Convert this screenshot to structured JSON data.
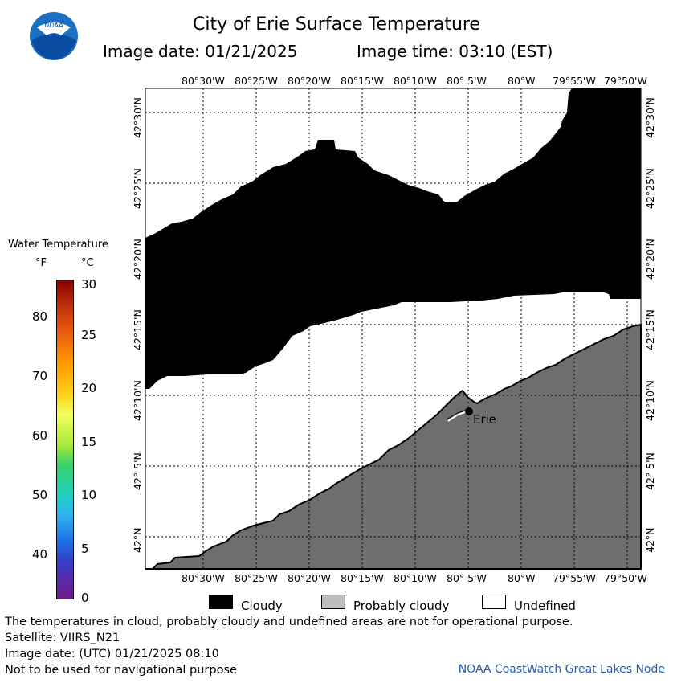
{
  "header": {
    "title": "City of Erie Surface Temperature",
    "image_date": "Image date: 01/21/2025",
    "image_time": "Image time: 03:10 (EST)",
    "logo_text": "NOAA"
  },
  "map": {
    "top_lon_labels": [
      "80°30'W",
      "80°25'W",
      "80°20'W",
      "80°15'W",
      "80°10'W",
      "80° 5'W",
      "80°W",
      "79°55'W",
      "79°50'W"
    ],
    "bottom_lon_labels": [
      "80°30'W",
      "80°25'W",
      "80°20'W",
      "80°15'W",
      "80°10'W",
      "80° 5'W",
      "80°W",
      "79°55'W",
      "79°50'W"
    ],
    "lat_labels": [
      "42°30'N",
      "42°25'N",
      "42°20'N",
      "42°15'N",
      "42°10'N",
      "42° 5'N",
      "42°N"
    ],
    "city_label": "Erie",
    "colors": {
      "cloudy": "#000000",
      "probably_cloudy": "#6e6e6e",
      "undefined": "#ffffff",
      "grid": "#000000"
    }
  },
  "colorbar": {
    "title": "Water Temperature",
    "unit_f": "°F",
    "unit_c": "°C",
    "f_ticks": [
      "80",
      "70",
      "60",
      "50",
      "40"
    ],
    "c_ticks": [
      "30",
      "25",
      "20",
      "15",
      "10",
      "5",
      "0"
    ]
  },
  "legend": {
    "cloudy": "Cloudy",
    "probably_cloudy": "Probably cloudy",
    "undefined": "Undefined"
  },
  "footer": {
    "note": "The temperatures in cloud, probably cloudy and undefined areas are not for operational purpose.",
    "satellite": "Satellite: VIIRS_N21",
    "utc_date": "Image date: (UTC) 01/21/2025  08:10",
    "nav_warning": "Not to be used for navigational purpose",
    "credit": "NOAA CoastWatch Great Lakes Node"
  }
}
